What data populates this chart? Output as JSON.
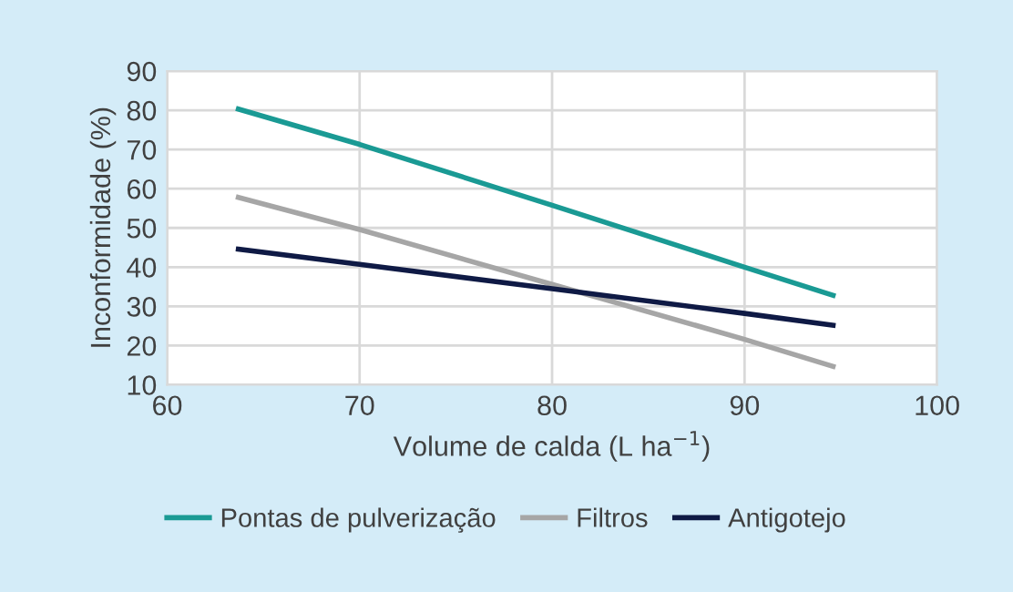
{
  "chart_data": {
    "type": "line",
    "xlabel": "Volume de calda (L ha$^{−1}$)",
    "ylabel": "Inconformidade (%)",
    "x": [
      63.7,
      70,
      80,
      90,
      94.6
    ],
    "series": [
      {
        "name": "Pontas de pulverização",
        "color": "#1a9a94",
        "values": [
          80.3,
          71.3,
          55.8,
          40,
          32.8
        ]
      },
      {
        "name": "Filtros",
        "color": "#a6a6a6",
        "values": [
          57.8,
          49.6,
          35.6,
          21.6,
          14.7
        ]
      },
      {
        "name": "Antigotejo",
        "color": "#0f1a45",
        "values": [
          44.6,
          40.7,
          34.5,
          28.2,
          25.2
        ]
      }
    ],
    "xlim": [
      60,
      100
    ],
    "xticks": [
      60,
      70,
      80,
      90,
      100
    ],
    "ylim": [
      10,
      90
    ],
    "yticks": [
      10,
      20,
      30,
      40,
      50,
      60,
      70,
      80,
      90
    ],
    "grid": true,
    "legend": "bottom",
    "marker": "none",
    "line_style": "solid"
  }
}
